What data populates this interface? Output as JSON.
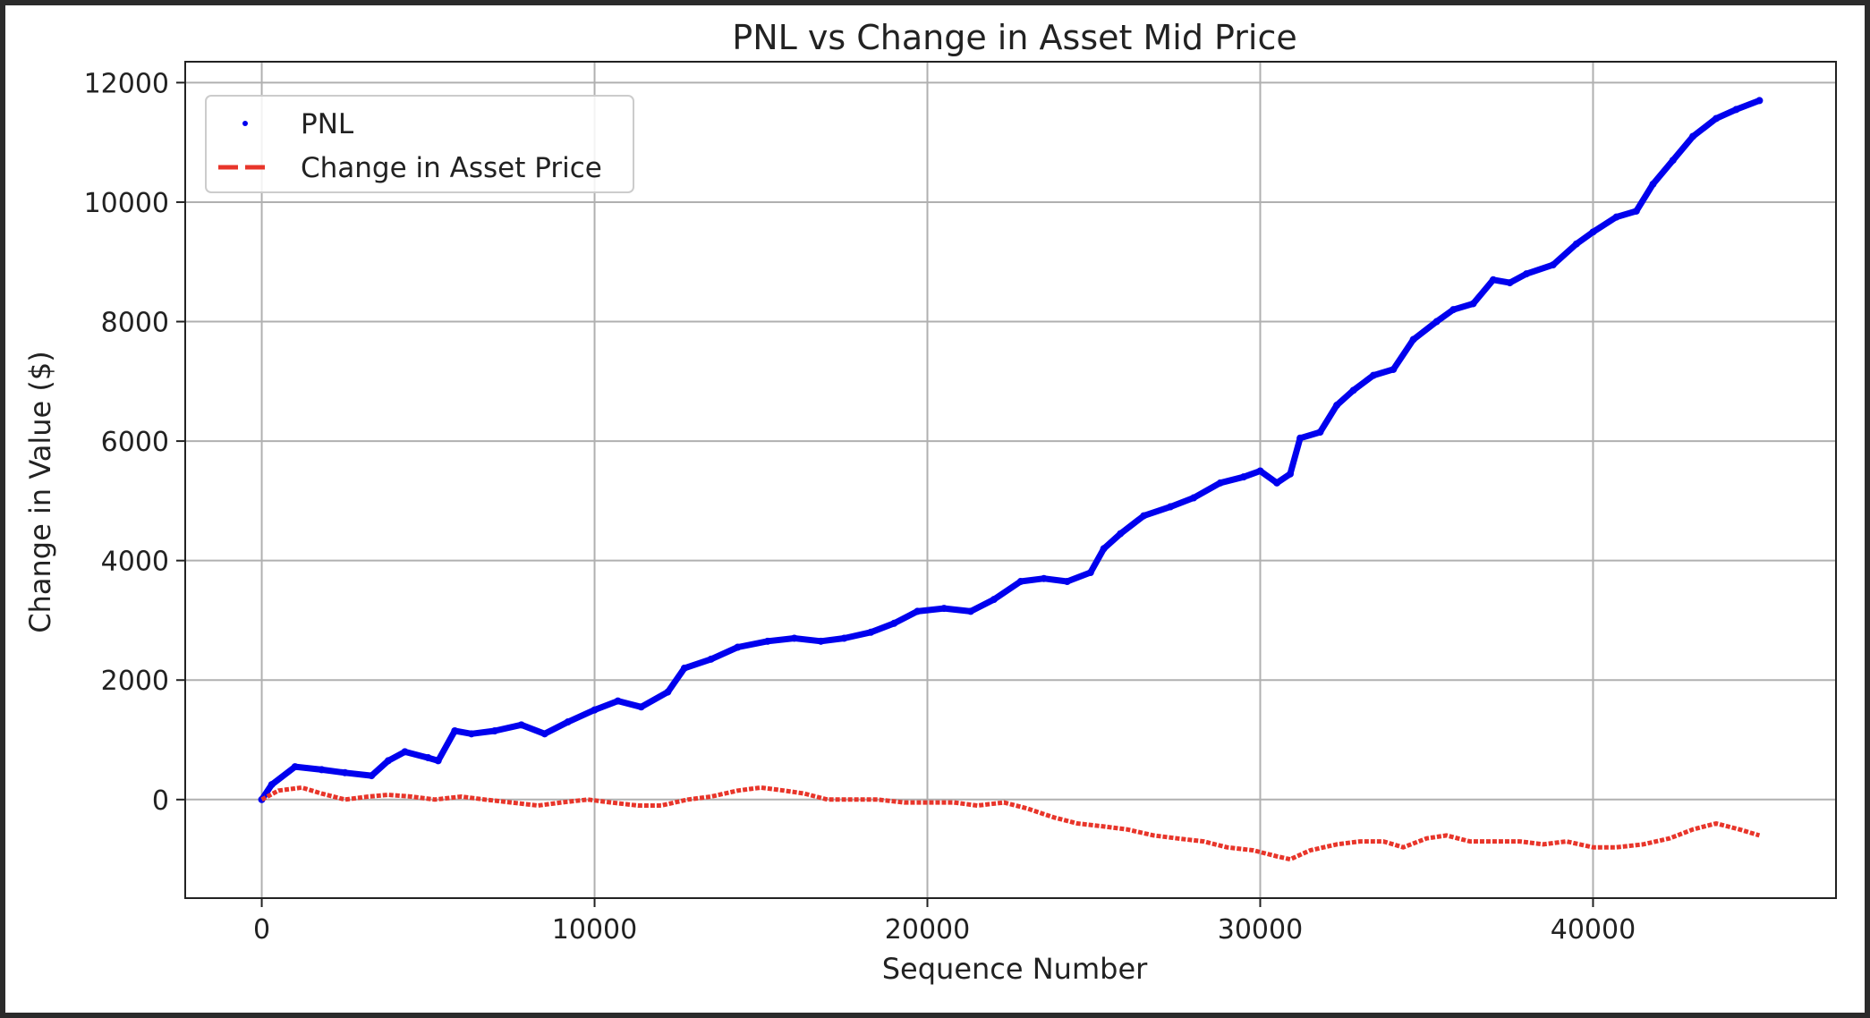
{
  "chart_data": {
    "type": "scatter",
    "title": "PNL vs Change in Asset Mid Price",
    "xlabel": "Sequence Number",
    "ylabel": "Change in Value ($)",
    "xlim": [
      -2300,
      47300
    ],
    "ylim": [
      -1650,
      12350
    ],
    "xticks": [
      0,
      10000,
      20000,
      30000,
      40000
    ],
    "yticks": [
      0,
      2000,
      4000,
      6000,
      8000,
      10000,
      12000
    ],
    "grid": true,
    "legend_position": "top-left",
    "series": [
      {
        "name": "PNL",
        "style": "points",
        "color": "#0000ee",
        "x": [
          0,
          300,
          1000,
          1800,
          2500,
          3300,
          3800,
          4300,
          5000,
          5300,
          5800,
          6300,
          7000,
          7800,
          8500,
          9200,
          10000,
          10700,
          11400,
          12200,
          12700,
          13500,
          14300,
          15200,
          16000,
          16800,
          17500,
          18300,
          19000,
          19700,
          20500,
          21300,
          22000,
          22800,
          23500,
          24200,
          24900,
          25300,
          25800,
          26500,
          27300,
          28000,
          28800,
          29500,
          30000,
          30500,
          30900,
          31200,
          31800,
          32300,
          32800,
          33400,
          34000,
          34600,
          35300,
          35800,
          36400,
          37000,
          37500,
          38000,
          38800,
          39500,
          40000,
          40700,
          41300,
          41800,
          42400,
          43000,
          43700,
          44300,
          45000
        ],
        "y": [
          0,
          250,
          550,
          500,
          450,
          400,
          650,
          800,
          700,
          650,
          1150,
          1100,
          1150,
          1250,
          1100,
          1300,
          1500,
          1650,
          1550,
          1800,
          2200,
          2350,
          2550,
          2650,
          2700,
          2650,
          2700,
          2800,
          2950,
          3150,
          3200,
          3150,
          3350,
          3650,
          3700,
          3650,
          3800,
          4200,
          4450,
          4750,
          4900,
          5050,
          5300,
          5400,
          5500,
          5300,
          5450,
          6050,
          6150,
          6600,
          6850,
          7100,
          7200,
          7700,
          8000,
          8200,
          8300,
          8700,
          8650,
          8800,
          8950,
          9300,
          9500,
          9750,
          9850,
          10300,
          10700,
          11100,
          11400,
          11550,
          11700
        ]
      },
      {
        "name": "Change in Asset Price",
        "style": "dashed",
        "color": "#e8352a",
        "x": [
          0,
          500,
          1200,
          1800,
          2500,
          3200,
          3800,
          4500,
          5200,
          6000,
          6700,
          7500,
          8300,
          9000,
          9800,
          10500,
          11300,
          12000,
          12800,
          13500,
          14300,
          15000,
          15700,
          16300,
          17000,
          17800,
          18500,
          19300,
          20000,
          20800,
          21500,
          22300,
          23000,
          23800,
          24500,
          25300,
          26000,
          26800,
          27500,
          28300,
          29000,
          29800,
          30500,
          30900,
          31500,
          32300,
          33000,
          33700,
          34300,
          35000,
          35600,
          36300,
          37000,
          37800,
          38500,
          39200,
          40000,
          40700,
          41500,
          42300,
          43000,
          43700,
          44400,
          45000
        ],
        "y": [
          0,
          150,
          200,
          100,
          0,
          50,
          80,
          50,
          0,
          50,
          0,
          -50,
          -100,
          -50,
          0,
          -50,
          -100,
          -100,
          0,
          50,
          150,
          200,
          150,
          100,
          0,
          0,
          0,
          -50,
          -50,
          -50,
          -100,
          -50,
          -150,
          -300,
          -400,
          -450,
          -500,
          -600,
          -650,
          -700,
          -800,
          -850,
          -950,
          -1000,
          -850,
          -750,
          -700,
          -700,
          -800,
          -650,
          -600,
          -700,
          -700,
          -700,
          -750,
          -700,
          -800,
          -800,
          -750,
          -650,
          -500,
          -400,
          -500,
          -600
        ]
      }
    ]
  }
}
